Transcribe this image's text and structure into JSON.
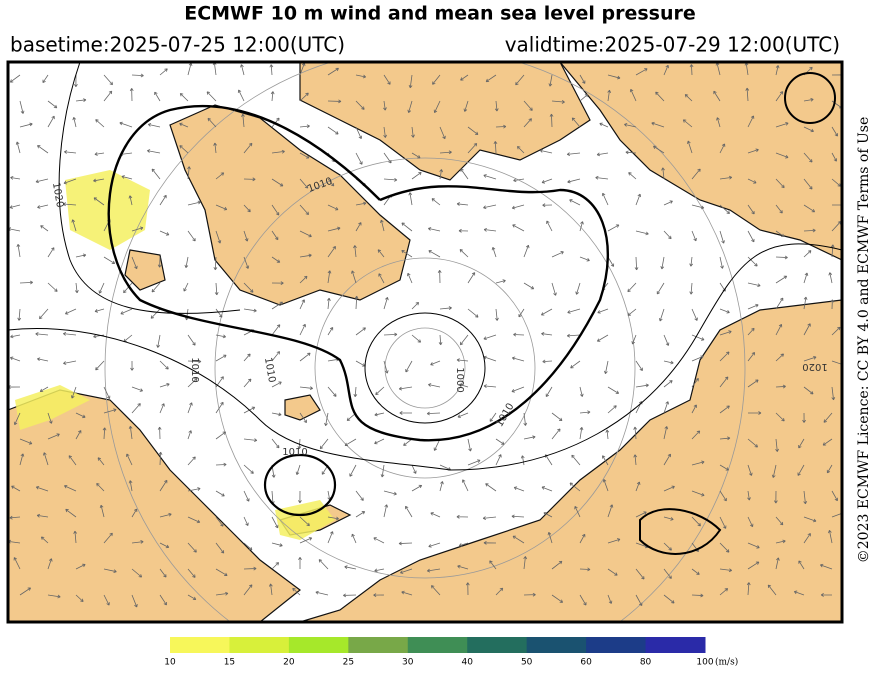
{
  "header": {
    "title": "ECMWF 10 m wind and mean sea level pressure",
    "basetime": "basetime:2025-07-25 12:00(UTC)",
    "validtime": "validtime:2025-07-29 12:00(UTC)"
  },
  "license": "©2023 ECMWF Licence: CC BY 4.0 and ECMWF Terms of Use",
  "map": {
    "isobar_labels": [
      "1020",
      "1010",
      "1010",
      "1010",
      "1000",
      "1010",
      "1010",
      "1020"
    ]
  },
  "colorbar": {
    "ticks": [
      10,
      15,
      20,
      25,
      30,
      40,
      50,
      60,
      80,
      100
    ],
    "colors": [
      "#f7f75a",
      "#d8f03a",
      "#a6e82a",
      "#78a848",
      "#3f8e55",
      "#236e5e",
      "#1a5270",
      "#1c3c88",
      "#2a2aa8"
    ],
    "unit": "(m/s)"
  }
}
